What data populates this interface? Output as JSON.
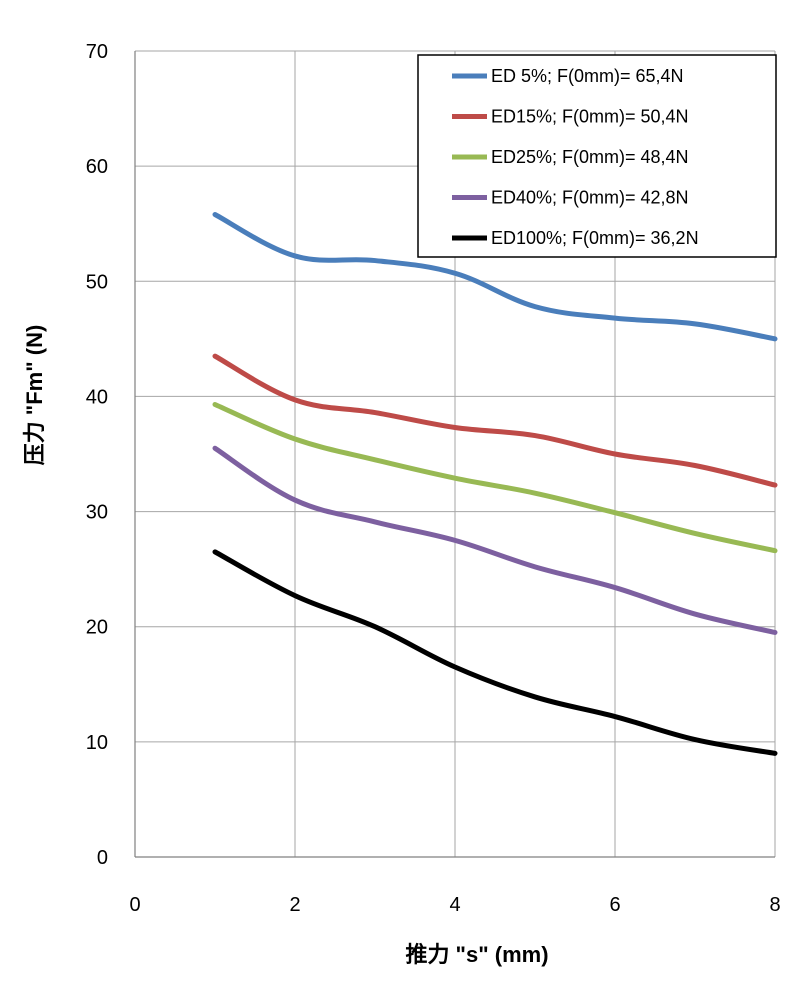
{
  "chart_data": {
    "type": "line",
    "title": "",
    "xlabel": "推力 \"s\" (mm)",
    "ylabel": "压力 \"Fm\" (N)",
    "xlim": [
      0,
      8
    ],
    "ylim": [
      0,
      70
    ],
    "x_ticks": [
      "0",
      "2",
      "4",
      "6",
      "8"
    ],
    "y_ticks": [
      "0",
      "10",
      "20",
      "30",
      "40",
      "50",
      "60",
      "70"
    ],
    "grid": true,
    "legend_position": "top-right",
    "x": [
      1,
      2,
      3,
      4,
      5,
      6,
      7,
      8
    ],
    "series": [
      {
        "name": "ED 5%; F(0mm)= 65,4N",
        "color": "#4a7ebb",
        "values": [
          55.8,
          52.2,
          51.8,
          50.7,
          47.8,
          46.8,
          46.3,
          45.0
        ]
      },
      {
        "name": "ED15%; F(0mm)= 50,4N",
        "color": "#be4b48",
        "values": [
          43.5,
          39.7,
          38.6,
          37.3,
          36.6,
          35.0,
          34.0,
          32.3
        ]
      },
      {
        "name": "ED25%; F(0mm)= 48,4N",
        "color": "#98b954",
        "values": [
          39.3,
          36.3,
          34.5,
          32.9,
          31.6,
          29.9,
          28.1,
          26.6
        ]
      },
      {
        "name": "ED40%; F(0mm)= 42,8N",
        "color": "#7d60a0",
        "values": [
          35.5,
          31.0,
          29.1,
          27.5,
          25.2,
          23.4,
          21.1,
          19.5
        ]
      },
      {
        "name": "ED100%; F(0mm)= 36,2N",
        "color": "#000000",
        "values": [
          26.5,
          22.7,
          20.0,
          16.5,
          13.9,
          12.2,
          10.2,
          9.0
        ]
      }
    ]
  }
}
